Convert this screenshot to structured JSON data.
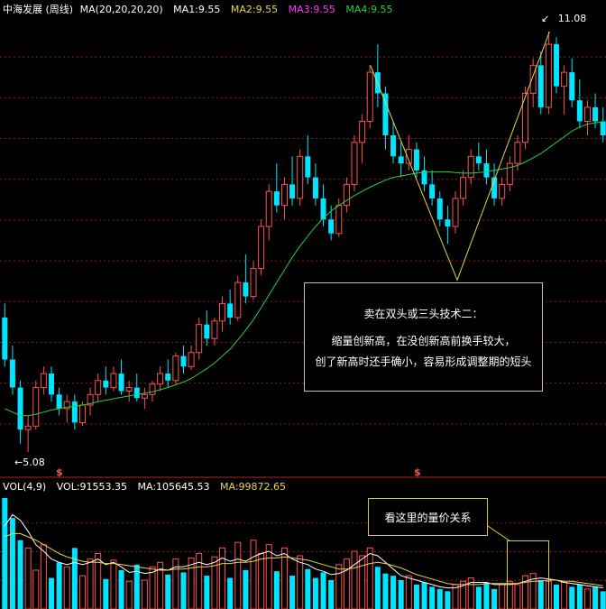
{
  "header": {
    "stock_name": "中海发展 (周线)",
    "ma_title": "MA(20,20,20,20)",
    "ma1": "MA1:9.55",
    "ma2": "MA2:9.55",
    "ma3": "MA3:9.55",
    "ma4": "MA4:9.55"
  },
  "volume_header": {
    "vol_title": "VOL(4,9)",
    "vol": "VOL:91553.35",
    "ma": "MA:105645.53",
    "ma2": "MA:99872.65"
  },
  "price_labels": {
    "high": "11.08",
    "low": "5.08"
  },
  "markers": [
    "$",
    "$"
  ],
  "annotation_main": {
    "title": "卖在双头或三头技术二：",
    "line1": "缩量创新高，在没创新高前换手较大，",
    "line2": "创了新高时还手确小，容易形成调整期的短头"
  },
  "annotation_volume": {
    "text": "看这里的量价关系"
  },
  "colors": {
    "up": "#ff5050",
    "down": "#00e5ff",
    "ma": "#2ecc40",
    "vol_ma1": "#ffffff",
    "vol_ma2": "#e8d44a",
    "annotation": "#e8d44a",
    "grid": "#8a1a1a"
  },
  "chart_data": {
    "type": "candlestick",
    "period": "weekly",
    "price_range": [
      4.9,
      11.3
    ],
    "high_mark": 11.08,
    "low_mark": 5.08,
    "candles": [
      [
        7.0,
        7.2,
        6.3,
        6.4
      ],
      [
        6.4,
        6.6,
        5.9,
        6.0
      ],
      [
        6.0,
        6.1,
        5.2,
        5.4
      ],
      [
        5.4,
        5.6,
        5.08,
        5.45
      ],
      [
        5.45,
        6.1,
        5.4,
        6.0
      ],
      [
        6.0,
        6.3,
        5.9,
        6.2
      ],
      [
        6.2,
        6.3,
        5.8,
        5.9
      ],
      [
        5.9,
        6.0,
        5.6,
        5.7
      ],
      [
        5.7,
        5.9,
        5.5,
        5.8
      ],
      [
        5.8,
        5.9,
        5.4,
        5.5
      ],
      [
        5.5,
        5.8,
        5.45,
        5.75
      ],
      [
        5.75,
        6.0,
        5.6,
        5.9
      ],
      [
        5.9,
        6.2,
        5.8,
        6.1
      ],
      [
        6.1,
        6.3,
        5.9,
        6.0
      ],
      [
        6.0,
        6.3,
        5.95,
        6.2
      ],
      [
        6.2,
        6.4,
        5.9,
        5.95
      ],
      [
        5.95,
        6.1,
        5.8,
        6.0
      ],
      [
        6.0,
        6.2,
        5.8,
        5.85
      ],
      [
        5.85,
        6.0,
        5.7,
        5.9
      ],
      [
        5.9,
        6.1,
        5.8,
        6.05
      ],
      [
        6.05,
        6.3,
        5.95,
        6.2
      ],
      [
        6.2,
        6.4,
        6.0,
        6.1
      ],
      [
        6.1,
        6.5,
        6.05,
        6.45
      ],
      [
        6.45,
        6.6,
        6.2,
        6.3
      ],
      [
        6.3,
        6.6,
        6.25,
        6.5
      ],
      [
        6.5,
        7.0,
        6.4,
        6.9
      ],
      [
        6.9,
        7.1,
        6.6,
        6.7
      ],
      [
        6.7,
        7.0,
        6.6,
        6.95
      ],
      [
        6.95,
        7.3,
        6.8,
        7.2
      ],
      [
        7.2,
        7.4,
        6.9,
        7.0
      ],
      [
        7.0,
        7.6,
        6.95,
        7.5
      ],
      [
        7.5,
        7.9,
        7.2,
        7.3
      ],
      [
        7.3,
        7.8,
        7.25,
        7.7
      ],
      [
        7.7,
        8.4,
        7.6,
        8.3
      ],
      [
        8.3,
        8.9,
        8.1,
        8.8
      ],
      [
        8.8,
        9.2,
        8.5,
        8.6
      ],
      [
        8.6,
        9.0,
        8.4,
        8.9
      ],
      [
        8.9,
        9.3,
        8.6,
        8.7
      ],
      [
        8.7,
        9.4,
        8.6,
        9.3
      ],
      [
        9.3,
        9.6,
        8.9,
        9.0
      ],
      [
        9.0,
        9.2,
        8.6,
        8.7
      ],
      [
        8.7,
        8.9,
        8.3,
        8.4
      ],
      [
        8.4,
        8.6,
        8.1,
        8.2
      ],
      [
        8.2,
        8.7,
        8.15,
        8.6
      ],
      [
        8.6,
        9.0,
        8.5,
        8.9
      ],
      [
        8.9,
        9.6,
        8.8,
        9.5
      ],
      [
        9.5,
        9.9,
        9.2,
        9.8
      ],
      [
        9.8,
        10.6,
        9.7,
        10.5
      ],
      [
        10.5,
        10.9,
        10.0,
        10.2
      ],
      [
        10.2,
        10.3,
        9.4,
        9.6
      ],
      [
        9.6,
        9.8,
        9.2,
        9.3
      ],
      [
        9.3,
        9.5,
        9.0,
        9.2
      ],
      [
        9.2,
        9.6,
        9.1,
        9.4
      ],
      [
        9.4,
        9.5,
        9.0,
        9.1
      ],
      [
        9.1,
        9.3,
        8.8,
        8.9
      ],
      [
        8.9,
        9.1,
        8.6,
        8.7
      ],
      [
        8.7,
        8.8,
        8.3,
        8.4
      ],
      [
        8.4,
        8.6,
        8.05,
        8.3
      ],
      [
        8.3,
        8.8,
        8.2,
        8.7
      ],
      [
        8.7,
        9.1,
        8.6,
        9.0
      ],
      [
        9.0,
        9.4,
        8.9,
        9.3
      ],
      [
        9.3,
        9.5,
        9.1,
        9.2
      ],
      [
        9.2,
        9.4,
        8.9,
        9.0
      ],
      [
        9.0,
        9.2,
        8.6,
        8.7
      ],
      [
        8.7,
        9.0,
        8.6,
        8.9
      ],
      [
        8.9,
        9.3,
        8.8,
        9.2
      ],
      [
        9.2,
        9.6,
        9.1,
        9.5
      ],
      [
        9.5,
        10.3,
        9.4,
        10.2
      ],
      [
        10.2,
        10.7,
        10.0,
        10.6
      ],
      [
        10.6,
        10.8,
        9.9,
        10.0
      ],
      [
        10.0,
        11.08,
        9.9,
        10.9
      ],
      [
        10.9,
        11.0,
        10.2,
        10.3
      ],
      [
        10.3,
        10.6,
        9.9,
        10.5
      ],
      [
        10.5,
        10.7,
        10.0,
        10.1
      ],
      [
        10.1,
        10.4,
        9.7,
        9.8
      ],
      [
        9.8,
        10.1,
        9.6,
        10.0
      ],
      [
        10.0,
        10.2,
        9.7,
        9.8
      ],
      [
        9.8,
        10.0,
        9.5,
        9.6
      ]
    ],
    "ma_line": [
      5.7,
      5.65,
      5.6,
      5.6,
      5.62,
      5.65,
      5.68,
      5.7,
      5.72,
      5.73,
      5.75,
      5.77,
      5.8,
      5.82,
      5.84,
      5.86,
      5.88,
      5.9,
      5.92,
      5.94,
      5.97,
      6.0,
      6.04,
      6.08,
      6.13,
      6.2,
      6.27,
      6.35,
      6.45,
      6.55,
      6.68,
      6.82,
      6.97,
      7.14,
      7.32,
      7.5,
      7.68,
      7.86,
      8.02,
      8.16,
      8.3,
      8.42,
      8.52,
      8.6,
      8.67,
      8.74,
      8.8,
      8.86,
      8.91,
      8.96,
      9.0,
      9.02,
      9.04,
      9.06,
      9.07,
      9.08,
      9.08,
      9.08,
      9.07,
      9.06,
      9.06,
      9.07,
      9.08,
      9.1,
      9.12,
      9.14,
      9.17,
      9.22,
      9.28,
      9.34,
      9.42,
      9.5,
      9.58,
      9.66,
      9.72,
      9.76,
      9.78,
      9.79
    ],
    "volume": [
      1.0,
      0.82,
      0.62,
      0.55,
      0.35,
      0.58,
      0.28,
      0.42,
      0.38,
      0.55,
      0.3,
      0.45,
      0.5,
      0.27,
      0.44,
      0.35,
      0.25,
      0.4,
      0.26,
      0.38,
      0.42,
      0.31,
      0.45,
      0.33,
      0.46,
      0.5,
      0.3,
      0.47,
      0.55,
      0.28,
      0.6,
      0.35,
      0.62,
      0.5,
      0.58,
      0.34,
      0.55,
      0.3,
      0.48,
      0.36,
      0.28,
      0.33,
      0.26,
      0.4,
      0.45,
      0.52,
      0.48,
      0.55,
      0.38,
      0.32,
      0.3,
      0.26,
      0.3,
      0.22,
      0.24,
      0.2,
      0.18,
      0.16,
      0.22,
      0.25,
      0.28,
      0.2,
      0.24,
      0.18,
      0.22,
      0.25,
      0.22,
      0.3,
      0.32,
      0.26,
      0.25,
      0.22,
      0.24,
      0.2,
      0.22,
      0.18,
      0.2,
      0.16
    ],
    "vol_ma1": [
      0.75,
      0.85,
      0.8,
      0.7,
      0.58,
      0.52,
      0.45,
      0.42,
      0.4,
      0.42,
      0.4,
      0.42,
      0.45,
      0.4,
      0.42,
      0.38,
      0.33,
      0.34,
      0.32,
      0.33,
      0.36,
      0.35,
      0.38,
      0.38,
      0.4,
      0.42,
      0.4,
      0.42,
      0.46,
      0.43,
      0.45,
      0.43,
      0.47,
      0.5,
      0.52,
      0.48,
      0.5,
      0.45,
      0.42,
      0.4,
      0.36,
      0.34,
      0.31,
      0.32,
      0.35,
      0.4,
      0.45,
      0.5,
      0.48,
      0.42,
      0.36,
      0.3,
      0.28,
      0.26,
      0.24,
      0.22,
      0.2,
      0.19,
      0.19,
      0.21,
      0.24,
      0.24,
      0.24,
      0.22,
      0.22,
      0.22,
      0.23,
      0.25,
      0.27,
      0.28,
      0.27,
      0.26,
      0.24,
      0.23,
      0.22,
      0.21,
      0.2,
      0.19
    ],
    "vol_ma2": [
      0.65,
      0.68,
      0.68,
      0.65,
      0.62,
      0.58,
      0.54,
      0.5,
      0.47,
      0.45,
      0.43,
      0.42,
      0.42,
      0.41,
      0.41,
      0.4,
      0.39,
      0.38,
      0.37,
      0.36,
      0.35,
      0.35,
      0.36,
      0.36,
      0.37,
      0.38,
      0.38,
      0.39,
      0.41,
      0.41,
      0.42,
      0.42,
      0.43,
      0.45,
      0.46,
      0.46,
      0.47,
      0.46,
      0.45,
      0.44,
      0.42,
      0.4,
      0.38,
      0.36,
      0.36,
      0.37,
      0.39,
      0.41,
      0.42,
      0.41,
      0.39,
      0.37,
      0.34,
      0.31,
      0.29,
      0.27,
      0.25,
      0.23,
      0.22,
      0.22,
      0.22,
      0.22,
      0.23,
      0.23,
      0.23,
      0.23,
      0.23,
      0.24,
      0.25,
      0.25,
      0.26,
      0.26,
      0.25,
      0.25,
      0.24,
      0.23,
      0.22,
      0.21
    ],
    "marker_candle_indices": [
      8,
      63
    ]
  }
}
